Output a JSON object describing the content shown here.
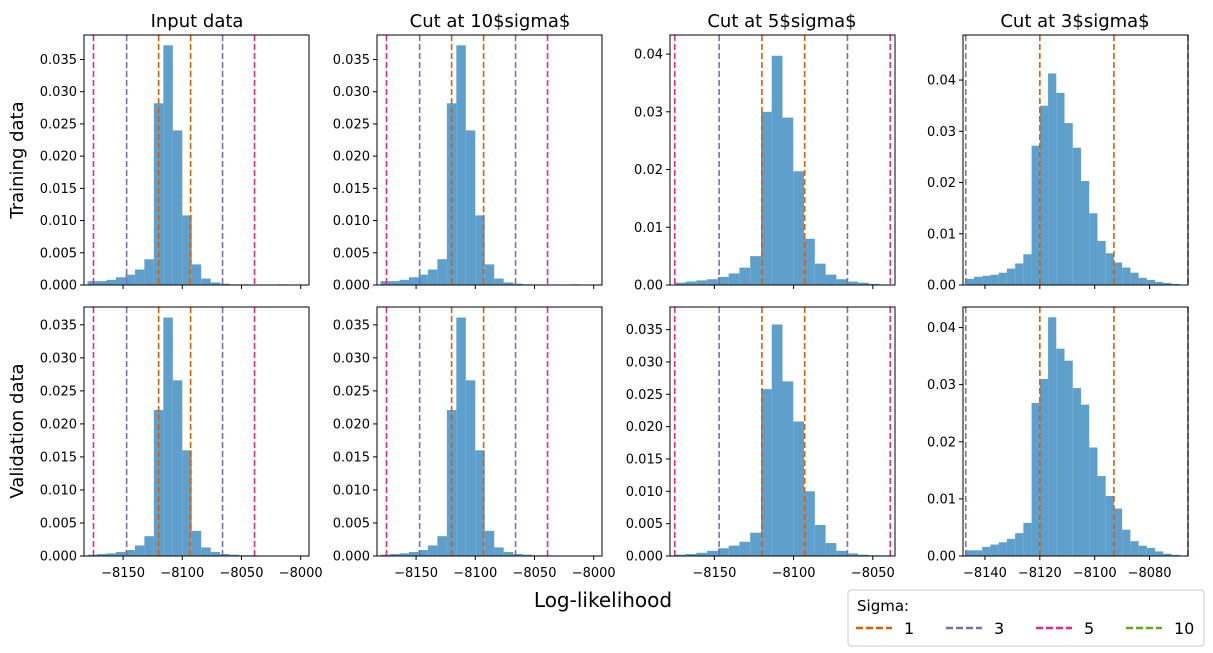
{
  "figure": {
    "column_titles": [
      "Input data",
      "Cut at 10$sigma$",
      "Cut at 5$sigma$",
      "Cut at 3$sigma$"
    ],
    "row_labels": [
      "Training data",
      "Validation data"
    ],
    "xlabel": "Log-likelihood",
    "legend": {
      "title": "Sigma:",
      "entries": [
        {
          "label": "1",
          "color": "#d95f02"
        },
        {
          "label": "3",
          "color": "#7570b3"
        },
        {
          "label": "5",
          "color": "#e7298a"
        },
        {
          "label": "10",
          "color": "#66a61e"
        }
      ]
    }
  },
  "chart_data": [
    {
      "type": "histogram",
      "row": "Training data",
      "column": "Input data",
      "bin_edges": [
        -8180,
        -8172,
        -8164,
        -8156,
        -8148,
        -8140,
        -8132,
        -8124,
        -8116,
        -8108,
        -8100,
        -8092,
        -8084,
        -8076,
        -8068,
        -8060,
        -8052,
        -8044,
        -8036,
        -8028,
        -8020,
        -8012,
        -8004,
        -7996
      ],
      "values": [
        0.0006,
        0.0006,
        0.0008,
        0.0012,
        0.0016,
        0.0024,
        0.004,
        0.0282,
        0.0372,
        0.024,
        0.0108,
        0.0032,
        0.001,
        0.0004,
        0.0002,
        0.0001,
        0.0001,
        0,
        0,
        0,
        0.0001,
        0,
        0
      ],
      "xlim": [
        -8183,
        -7993
      ],
      "ylim": [
        0,
        0.0388
      ],
      "xticks": [
        -8150,
        -8100,
        -8050,
        -8000
      ],
      "yticks": [
        0,
        0.005,
        0.01,
        0.015,
        0.02,
        0.025,
        0.03,
        0.035
      ],
      "ytick_labels": [
        "0.000",
        "0.005",
        "0.010",
        "0.015",
        "0.020",
        "0.025",
        "0.030",
        "0.035"
      ],
      "sigma_lines": {
        "1": [
          -8120,
          -8093
        ],
        "3": [
          -8147,
          -8066
        ],
        "5": [
          -8175,
          -8039
        ]
      }
    },
    {
      "type": "histogram",
      "row": "Training data",
      "column": "Cut at 10$sigma$",
      "bin_edges": [
        -8180,
        -8172,
        -8164,
        -8156,
        -8148,
        -8140,
        -8132,
        -8124,
        -8116,
        -8108,
        -8100,
        -8092,
        -8084,
        -8076,
        -8068,
        -8060,
        -8052,
        -8044,
        -8036,
        -8028,
        -8020,
        -8012,
        -8004,
        -7996
      ],
      "values": [
        0.0006,
        0.0006,
        0.0008,
        0.0012,
        0.0016,
        0.0024,
        0.004,
        0.0282,
        0.0372,
        0.024,
        0.0108,
        0.0032,
        0.001,
        0.0004,
        0.0002,
        0.0001,
        0.0001,
        0,
        0,
        0,
        0.0001,
        0,
        0
      ],
      "xlim": [
        -8183,
        -7993
      ],
      "ylim": [
        0,
        0.0388
      ],
      "xticks": [
        -8150,
        -8100,
        -8050,
        -8000
      ],
      "yticks": [
        0,
        0.005,
        0.01,
        0.015,
        0.02,
        0.025,
        0.03,
        0.035
      ],
      "ytick_labels": [
        "0.000",
        "0.005",
        "0.010",
        "0.015",
        "0.020",
        "0.025",
        "0.030",
        "0.035"
      ],
      "sigma_lines": {
        "1": [
          -8120,
          -8093
        ],
        "3": [
          -8147,
          -8066
        ],
        "5": [
          -8175,
          -8039
        ]
      }
    },
    {
      "type": "histogram",
      "row": "Training data",
      "column": "Cut at 5$sigma$",
      "bin_edges": [
        -8175,
        -8168.2,
        -8161.4,
        -8154.6,
        -8147.8,
        -8141,
        -8134.2,
        -8127.4,
        -8120.6,
        -8113.8,
        -8107,
        -8100.2,
        -8093.4,
        -8086.6,
        -8079.8,
        -8073,
        -8066.2,
        -8059.4,
        -8052.6,
        -8045.8,
        -8039
      ],
      "values": [
        0.0004,
        0.0006,
        0.0008,
        0.001,
        0.0014,
        0.002,
        0.003,
        0.005,
        0.03,
        0.0397,
        0.029,
        0.0197,
        0.008,
        0.0037,
        0.0018,
        0.001,
        0.0006,
        0.0004,
        0.0002,
        0.0001
      ],
      "xlim": [
        -8178,
        -8036
      ],
      "ylim": [
        0,
        0.0433
      ],
      "xticks": [
        -8150,
        -8100,
        -8050
      ],
      "yticks": [
        0,
        0.01,
        0.02,
        0.03,
        0.04
      ],
      "ytick_labels": [
        "0.00",
        "0.01",
        "0.02",
        "0.03",
        "0.04"
      ],
      "sigma_lines": {
        "1": [
          -8120,
          -8093
        ],
        "3": [
          -8147,
          -8066
        ],
        "5": [
          -8175,
          -8039
        ]
      }
    },
    {
      "type": "histogram",
      "row": "Training data",
      "column": "Cut at 3$sigma$",
      "bin_edges": [
        -8147,
        -8144,
        -8141,
        -8138,
        -8135,
        -8132,
        -8129,
        -8126,
        -8123,
        -8120,
        -8117,
        -8114,
        -8111,
        -8108,
        -8105,
        -8102,
        -8099,
        -8096,
        -8093,
        -8090,
        -8087,
        -8084,
        -8081,
        -8078,
        -8075,
        -8072,
        -8069
      ],
      "values": [
        0.0012,
        0.0016,
        0.0018,
        0.002,
        0.0024,
        0.0032,
        0.0042,
        0.006,
        0.0272,
        0.035,
        0.0413,
        0.0375,
        0.0316,
        0.0268,
        0.0203,
        0.014,
        0.0086,
        0.0062,
        0.0044,
        0.0034,
        0.0024,
        0.0014,
        0.001,
        0.0006,
        0.0004,
        0.0002
      ],
      "xlim": [
        -8148,
        -8066
      ],
      "ylim": [
        0,
        0.0488
      ],
      "xticks": [],
      "yticks": [
        0,
        0.01,
        0.02,
        0.03,
        0.04
      ],
      "ytick_labels": [
        "0.00",
        "0.01",
        "0.02",
        "0.03",
        "0.04"
      ],
      "sigma_lines": {
        "1": [
          -8120,
          -8093
        ],
        "3": [
          -8147,
          -8066
        ]
      }
    },
    {
      "type": "histogram",
      "row": "Validation data",
      "column": "Input data",
      "bin_edges": [
        -8180,
        -8172,
        -8164,
        -8156,
        -8148,
        -8140,
        -8132,
        -8124,
        -8116,
        -8108,
        -8100,
        -8092,
        -8084,
        -8076,
        -8068,
        -8060,
        -8052,
        -8044,
        -8036,
        -8028,
        -8020,
        -8012,
        -8004,
        -7996
      ],
      "values": [
        0.0002,
        0.0003,
        0.0004,
        0.0006,
        0.0009,
        0.0016,
        0.003,
        0.0221,
        0.0361,
        0.0266,
        0.016,
        0.0038,
        0.0013,
        0.0006,
        0.0003,
        0.0002,
        0.0001,
        0.0001,
        0,
        0,
        0,
        0,
        0
      ],
      "xlim": [
        -8183,
        -7993
      ],
      "ylim": [
        0,
        0.0377
      ],
      "xticks": [
        -8150,
        -8100,
        -8050,
        -8000
      ],
      "yticks": [
        0,
        0.005,
        0.01,
        0.015,
        0.02,
        0.025,
        0.03,
        0.035
      ],
      "ytick_labels": [
        "0.000",
        "0.005",
        "0.010",
        "0.015",
        "0.020",
        "0.025",
        "0.030",
        "0.035"
      ],
      "sigma_lines": {
        "1": [
          -8120,
          -8093
        ],
        "3": [
          -8147,
          -8066
        ],
        "5": [
          -8175,
          -8039
        ]
      }
    },
    {
      "type": "histogram",
      "row": "Validation data",
      "column": "Cut at 10$sigma$",
      "bin_edges": [
        -8180,
        -8172,
        -8164,
        -8156,
        -8148,
        -8140,
        -8132,
        -8124,
        -8116,
        -8108,
        -8100,
        -8092,
        -8084,
        -8076,
        -8068,
        -8060,
        -8052,
        -8044,
        -8036,
        -8028,
        -8020,
        -8012,
        -8004,
        -7996
      ],
      "values": [
        0.0002,
        0.0003,
        0.0004,
        0.0006,
        0.0009,
        0.0016,
        0.003,
        0.0221,
        0.0361,
        0.0266,
        0.016,
        0.0038,
        0.0013,
        0.0006,
        0.0003,
        0.0002,
        0.0001,
        0.0001,
        0,
        0,
        0,
        0,
        0
      ],
      "xlim": [
        -8183,
        -7993
      ],
      "ylim": [
        0,
        0.0377
      ],
      "xticks": [
        -8150,
        -8100,
        -8050,
        -8000
      ],
      "yticks": [
        0,
        0.005,
        0.01,
        0.015,
        0.02,
        0.025,
        0.03,
        0.035
      ],
      "ytick_labels": [
        "0.000",
        "0.005",
        "0.010",
        "0.015",
        "0.020",
        "0.025",
        "0.030",
        "0.035"
      ],
      "sigma_lines": {
        "1": [
          -8120,
          -8093
        ],
        "3": [
          -8147,
          -8066
        ],
        "5": [
          -8175,
          -8039
        ]
      }
    },
    {
      "type": "histogram",
      "row": "Validation data",
      "column": "Cut at 5$sigma$",
      "bin_edges": [
        -8175,
        -8168.2,
        -8161.4,
        -8154.6,
        -8147.8,
        -8141,
        -8134.2,
        -8127.4,
        -8120.6,
        -8113.8,
        -8107,
        -8100.2,
        -8093.4,
        -8086.6,
        -8079.8,
        -8073,
        -8066.2,
        -8059.4,
        -8052.6,
        -8045.8,
        -8039
      ],
      "values": [
        0.0002,
        0.0003,
        0.0005,
        0.0008,
        0.0012,
        0.0016,
        0.0022,
        0.0036,
        0.0258,
        0.0358,
        0.027,
        0.0208,
        0.01,
        0.0048,
        0.002,
        0.0008,
        0.0004,
        0.0002,
        0.0001,
        0.0001
      ],
      "xlim": [
        -8178,
        -8036
      ],
      "ylim": [
        0,
        0.0385
      ],
      "xticks": [
        -8150,
        -8100,
        -8050
      ],
      "yticks": [
        0,
        0.005,
        0.01,
        0.015,
        0.02,
        0.025,
        0.03,
        0.035
      ],
      "ytick_labels": [
        "0.000",
        "0.005",
        "0.010",
        "0.015",
        "0.020",
        "0.025",
        "0.030",
        "0.035"
      ],
      "sigma_lines": {
        "1": [
          -8120,
          -8093
        ],
        "3": [
          -8147,
          -8066
        ],
        "5": [
          -8175,
          -8039
        ]
      }
    },
    {
      "type": "histogram",
      "row": "Validation data",
      "column": "Cut at 3$sigma$",
      "bin_edges": [
        -8147,
        -8144,
        -8141,
        -8138,
        -8135,
        -8132,
        -8129,
        -8126,
        -8123,
        -8120,
        -8117,
        -8114,
        -8111,
        -8108,
        -8105,
        -8102,
        -8099,
        -8096,
        -8093,
        -8090,
        -8087,
        -8084,
        -8081,
        -8078,
        -8075,
        -8072,
        -8069
      ],
      "values": [
        0.001,
        0.001,
        0.0016,
        0.002,
        0.0024,
        0.003,
        0.004,
        0.0058,
        0.0268,
        0.031,
        0.0418,
        0.0363,
        0.0342,
        0.0294,
        0.0265,
        0.019,
        0.014,
        0.0105,
        0.0083,
        0.0046,
        0.0026,
        0.0018,
        0.0014,
        0.0008,
        0.0004,
        0.0002
      ],
      "xlim": [
        -8148,
        -8066
      ],
      "ylim": [
        0,
        0.0436
      ],
      "xticks": [
        -8140,
        -8120,
        -8100,
        -8080
      ],
      "yticks": [
        0,
        0.01,
        0.02,
        0.03,
        0.04
      ],
      "ytick_labels": [
        "0.00",
        "0.01",
        "0.02",
        "0.03",
        "0.04"
      ],
      "sigma_lines": {
        "1": [
          -8120,
          -8093
        ],
        "3": [
          -8147,
          -8066
        ]
      }
    }
  ]
}
